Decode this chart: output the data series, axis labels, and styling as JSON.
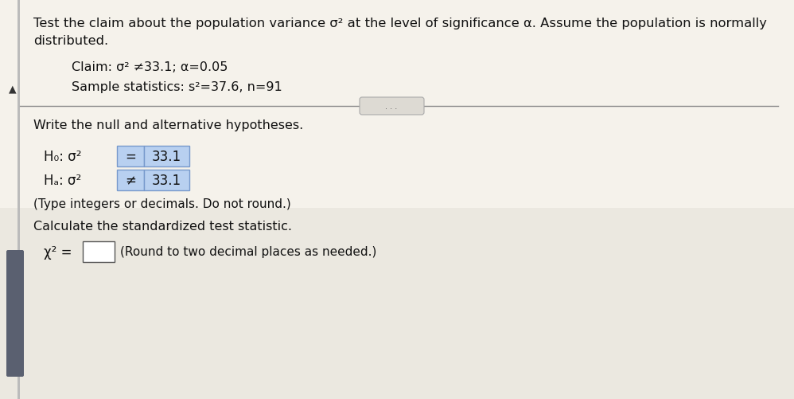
{
  "bg_color": "#f0ede6",
  "top_bg_color": "#f0ede6",
  "bottom_bg_color": "#e8e5de",
  "left_bar_color": "#aaaaaa",
  "left_bar_bottom_color": "#5a6a8a",
  "box_fill": "#b8d0f0",
  "box_border": "#7799cc",
  "op_box_fill": "#b8d0f0",
  "op_box_border": "#7799cc",
  "divider_color": "#888888",
  "title_text_line1": "Test the claim about the population variance σ² at the level of significance α. Assume the population is normally",
  "title_text_line2": "distributed.",
  "claim_line": "Claim: σ² ≠33.1; α=0.05",
  "sample_line": "Sample statistics: s²=37.6, n=91",
  "section_header": "Write the null and alternative hypotheses.",
  "h0_prefix": "H₀: σ²",
  "h0_operator": "=",
  "h0_value": "33.1",
  "ha_prefix": "Hₐ: σ²",
  "ha_operator": "≠",
  "ha_value": "33.1",
  "type_note": "(Type integers or decimals. Do not round.)",
  "calc_header": "Calculate the standardized test statistic.",
  "chi_prefix": "χ² =",
  "chi_note": "(Round to two decimal places as needed.)",
  "font_size_title": 11.8,
  "font_size_body": 11.5,
  "font_size_math": 12.0,
  "font_size_small": 11.0
}
